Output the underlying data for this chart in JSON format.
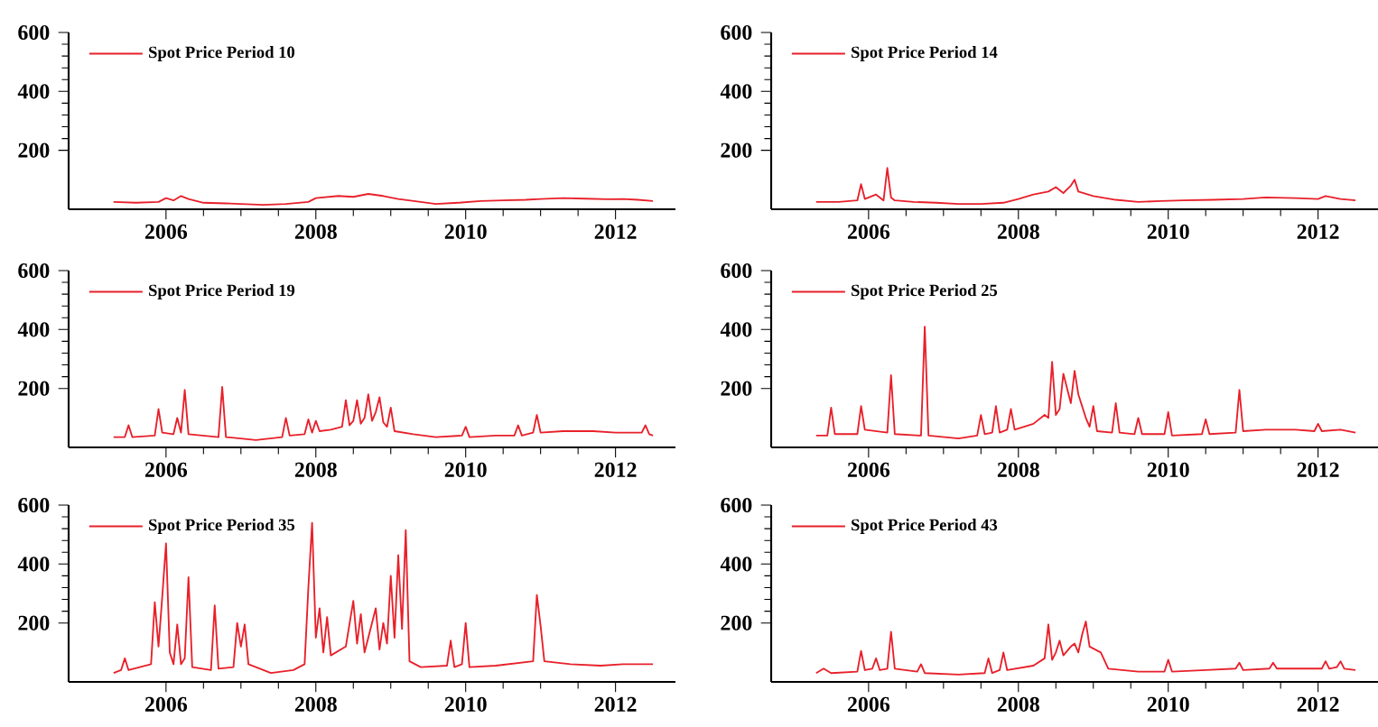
{
  "chart_data": [
    {
      "type": "line",
      "legend": "top left",
      "xlim": [
        2004.7,
        2012.8
      ],
      "ylim": [
        0,
        600
      ],
      "xticks": [
        2006,
        2008,
        2010,
        2012
      ],
      "yticks": [
        200,
        400,
        600
      ],
      "series": [
        {
          "name": "Spot Price Period 10",
          "color": "#e8202a",
          "x": [
            2005.3,
            2005.6,
            2005.9,
            2006.0,
            2006.1,
            2006.2,
            2006.3,
            2006.5,
            2006.8,
            2007.0,
            2007.3,
            2007.6,
            2007.9,
            2008.0,
            2008.3,
            2008.5,
            2008.7,
            2008.9,
            2009.1,
            2009.4,
            2009.6,
            2009.9,
            2010.2,
            2010.5,
            2010.8,
            2011.0,
            2011.3,
            2011.6,
            2011.9,
            2012.1,
            2012.3,
            2012.5
          ],
          "values": [
            25,
            22,
            25,
            38,
            30,
            45,
            35,
            22,
            20,
            18,
            15,
            18,
            25,
            38,
            45,
            42,
            52,
            45,
            35,
            25,
            18,
            22,
            28,
            30,
            32,
            35,
            38,
            36,
            34,
            35,
            32,
            28
          ]
        }
      ]
    },
    {
      "type": "line",
      "legend": "top left",
      "xlim": [
        2004.7,
        2012.8
      ],
      "ylim": [
        0,
        600
      ],
      "xticks": [
        2006,
        2008,
        2010,
        2012
      ],
      "yticks": [
        200,
        400,
        600
      ],
      "series": [
        {
          "name": "Spot Price Period 14",
          "color": "#e8202a",
          "x": [
            2005.3,
            2005.6,
            2005.85,
            2005.9,
            2005.95,
            2006.1,
            2006.2,
            2006.25,
            2006.3,
            2006.35,
            2006.6,
            2006.9,
            2007.2,
            2007.5,
            2007.8,
            2008.0,
            2008.2,
            2008.4,
            2008.5,
            2008.6,
            2008.7,
            2008.75,
            2008.8,
            2009.0,
            2009.3,
            2009.6,
            2009.9,
            2010.2,
            2010.6,
            2011.0,
            2011.3,
            2011.7,
            2012.0,
            2012.1,
            2012.3,
            2012.5
          ],
          "values": [
            25,
            25,
            30,
            85,
            35,
            50,
            30,
            140,
            40,
            30,
            25,
            22,
            18,
            18,
            22,
            35,
            50,
            60,
            75,
            55,
            80,
            100,
            60,
            45,
            32,
            25,
            28,
            30,
            32,
            35,
            40,
            38,
            35,
            45,
            35,
            30
          ]
        }
      ]
    },
    {
      "type": "line",
      "legend": "top left",
      "xlim": [
        2004.7,
        2012.8
      ],
      "ylim": [
        0,
        600
      ],
      "xticks": [
        2006,
        2008,
        2010,
        2012
      ],
      "yticks": [
        200,
        400,
        600
      ],
      "series": [
        {
          "name": "Spot Price Period 19",
          "color": "#e8202a",
          "x": [
            2005.3,
            2005.45,
            2005.5,
            2005.55,
            2005.85,
            2005.9,
            2005.95,
            2006.1,
            2006.15,
            2006.2,
            2006.25,
            2006.3,
            2006.7,
            2006.75,
            2006.8,
            2007.2,
            2007.55,
            2007.6,
            2007.65,
            2007.85,
            2007.9,
            2007.95,
            2008.0,
            2008.05,
            2008.2,
            2008.35,
            2008.4,
            2008.45,
            2008.5,
            2008.55,
            2008.6,
            2008.65,
            2008.7,
            2008.75,
            2008.8,
            2008.85,
            2008.9,
            2008.95,
            2009.0,
            2009.05,
            2009.3,
            2009.6,
            2009.95,
            2010.0,
            2010.05,
            2010.4,
            2010.65,
            2010.7,
            2010.75,
            2010.9,
            2010.95,
            2011.0,
            2011.3,
            2011.7,
            2012.0,
            2012.35,
            2012.4,
            2012.45,
            2012.5
          ],
          "values": [
            35,
            35,
            75,
            35,
            40,
            130,
            50,
            45,
            100,
            50,
            195,
            45,
            35,
            205,
            35,
            25,
            35,
            100,
            40,
            45,
            95,
            50,
            90,
            55,
            60,
            70,
            160,
            75,
            90,
            160,
            80,
            100,
            180,
            90,
            120,
            170,
            85,
            70,
            135,
            55,
            45,
            35,
            40,
            70,
            35,
            40,
            40,
            75,
            40,
            50,
            110,
            50,
            55,
            55,
            50,
            50,
            75,
            45,
            40
          ]
        }
      ]
    },
    {
      "type": "line",
      "legend": "top left",
      "xlim": [
        2004.7,
        2012.8
      ],
      "ylim": [
        0,
        600
      ],
      "xticks": [
        2006,
        2008,
        2010,
        2012
      ],
      "yticks": [
        200,
        400,
        600
      ],
      "series": [
        {
          "name": "Spot Price Period 25",
          "color": "#e8202a",
          "x": [
            2005.3,
            2005.45,
            2005.5,
            2005.55,
            2005.85,
            2005.9,
            2005.95,
            2006.25,
            2006.3,
            2006.35,
            2006.7,
            2006.75,
            2006.8,
            2007.2,
            2007.45,
            2007.5,
            2007.55,
            2007.65,
            2007.7,
            2007.75,
            2007.85,
            2007.9,
            2007.95,
            2008.2,
            2008.35,
            2008.4,
            2008.45,
            2008.5,
            2008.55,
            2008.6,
            2008.7,
            2008.75,
            2008.8,
            2008.9,
            2008.95,
            2009.0,
            2009.05,
            2009.25,
            2009.3,
            2009.35,
            2009.55,
            2009.6,
            2009.65,
            2009.95,
            2010.0,
            2010.05,
            2010.45,
            2010.5,
            2010.55,
            2010.9,
            2010.95,
            2011.0,
            2011.3,
            2011.7,
            2011.95,
            2012.0,
            2012.05,
            2012.3,
            2012.5
          ],
          "values": [
            40,
            40,
            135,
            45,
            45,
            140,
            60,
            50,
            245,
            45,
            40,
            410,
            40,
            30,
            40,
            110,
            45,
            50,
            140,
            50,
            60,
            130,
            60,
            80,
            110,
            100,
            290,
            110,
            130,
            250,
            150,
            260,
            180,
            100,
            70,
            140,
            55,
            50,
            150,
            50,
            45,
            100,
            45,
            45,
            120,
            40,
            45,
            95,
            45,
            50,
            195,
            55,
            60,
            60,
            55,
            80,
            55,
            60,
            50
          ]
        }
      ]
    },
    {
      "type": "line",
      "legend": "top left",
      "xlim": [
        2004.7,
        2012.8
      ],
      "ylim": [
        0,
        600
      ],
      "xticks": [
        2006,
        2008,
        2010,
        2012
      ],
      "yticks": [
        200,
        400,
        600
      ],
      "series": [
        {
          "name": "Spot Price Period 35",
          "color": "#e8202a",
          "x": [
            2005.3,
            2005.4,
            2005.45,
            2005.5,
            2005.8,
            2005.85,
            2005.9,
            2005.95,
            2006.0,
            2006.05,
            2006.1,
            2006.15,
            2006.2,
            2006.25,
            2006.3,
            2006.35,
            2006.6,
            2006.65,
            2006.7,
            2006.9,
            2006.95,
            2007.0,
            2007.05,
            2007.1,
            2007.4,
            2007.7,
            2007.85,
            2007.9,
            2007.95,
            2008.0,
            2008.05,
            2008.1,
            2008.15,
            2008.2,
            2008.4,
            2008.5,
            2008.55,
            2008.6,
            2008.65,
            2008.7,
            2008.8,
            2008.85,
            2008.9,
            2008.95,
            2009.0,
            2009.05,
            2009.1,
            2009.15,
            2009.2,
            2009.25,
            2009.4,
            2009.75,
            2009.8,
            2009.85,
            2009.95,
            2010.0,
            2010.05,
            2010.4,
            2010.9,
            2010.95,
            2011.0,
            2011.05,
            2011.4,
            2011.8,
            2012.1,
            2012.3,
            2012.5
          ],
          "values": [
            30,
            40,
            80,
            40,
            60,
            270,
            120,
            290,
            470,
            100,
            60,
            195,
            60,
            80,
            355,
            50,
            40,
            260,
            45,
            50,
            200,
            120,
            195,
            60,
            30,
            40,
            60,
            320,
            540,
            150,
            250,
            100,
            220,
            90,
            120,
            275,
            130,
            230,
            100,
            150,
            250,
            110,
            200,
            130,
            360,
            150,
            430,
            180,
            515,
            70,
            50,
            55,
            140,
            50,
            60,
            200,
            50,
            55,
            70,
            295,
            190,
            70,
            60,
            55,
            60,
            60,
            60
          ]
        }
      ]
    },
    {
      "type": "line",
      "legend": "top left",
      "xlim": [
        2004.7,
        2012.8
      ],
      "ylim": [
        0,
        600
      ],
      "xticks": [
        2006,
        2008,
        2010,
        2012
      ],
      "yticks": [
        200,
        400,
        600
      ],
      "series": [
        {
          "name": "Spot Price Period 43",
          "color": "#e8202a",
          "x": [
            2005.3,
            2005.4,
            2005.5,
            2005.85,
            2005.9,
            2005.95,
            2006.05,
            2006.1,
            2006.15,
            2006.25,
            2006.3,
            2006.35,
            2006.65,
            2006.7,
            2006.75,
            2007.2,
            2007.55,
            2007.6,
            2007.65,
            2007.75,
            2007.8,
            2007.85,
            2008.2,
            2008.35,
            2008.4,
            2008.45,
            2008.5,
            2008.55,
            2008.6,
            2008.7,
            2008.75,
            2008.8,
            2008.85,
            2008.9,
            2008.95,
            2009.1,
            2009.2,
            2009.6,
            2009.95,
            2010.0,
            2010.05,
            2010.5,
            2010.9,
            2010.95,
            2011.0,
            2011.35,
            2011.4,
            2011.45,
            2011.9,
            2012.05,
            2012.1,
            2012.15,
            2012.25,
            2012.3,
            2012.35,
            2012.5
          ],
          "values": [
            30,
            45,
            30,
            35,
            105,
            40,
            45,
            80,
            40,
            45,
            170,
            45,
            35,
            60,
            30,
            25,
            30,
            80,
            30,
            40,
            100,
            40,
            55,
            80,
            195,
            75,
            100,
            140,
            90,
            120,
            130,
            100,
            160,
            205,
            120,
            100,
            45,
            35,
            35,
            75,
            35,
            40,
            45,
            65,
            40,
            45,
            65,
            45,
            45,
            45,
            70,
            45,
            50,
            70,
            45,
            40
          ]
        }
      ]
    }
  ]
}
